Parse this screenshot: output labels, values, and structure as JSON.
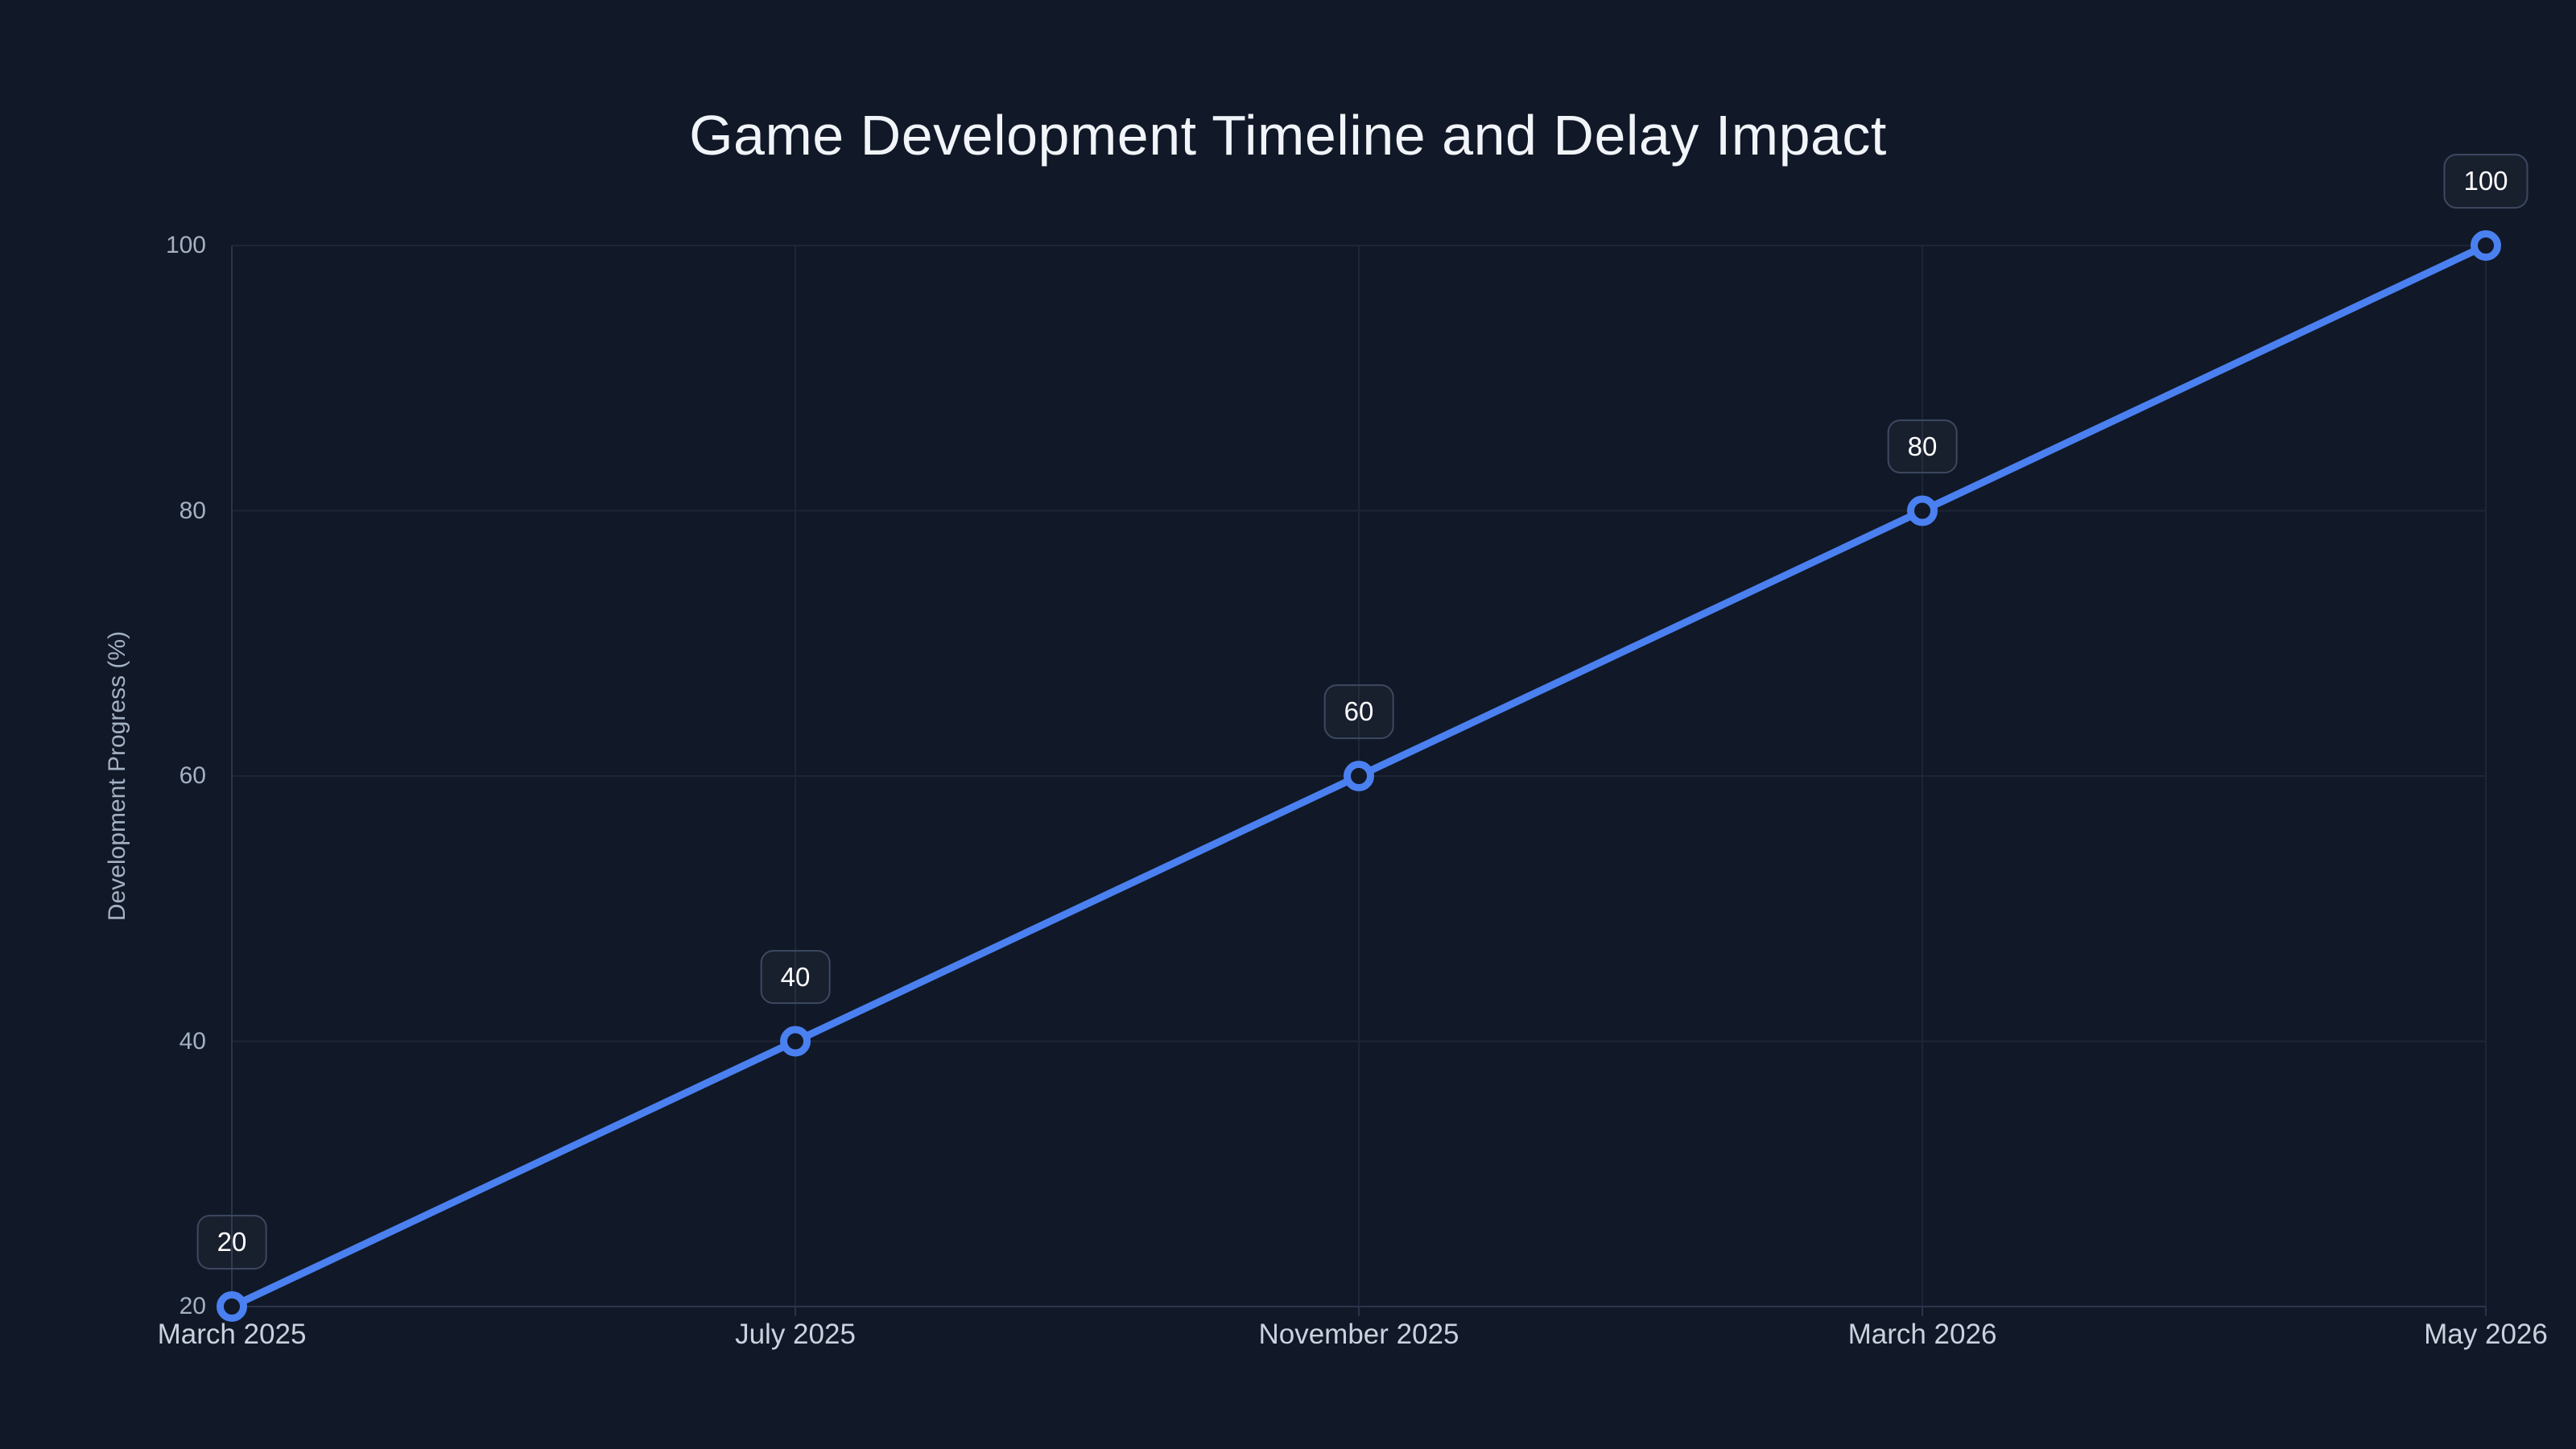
{
  "page": {
    "background_color": "#111827"
  },
  "chart_data": {
    "type": "line",
    "title": "Game Development Timeline and Delay Impact",
    "xlabel": "",
    "ylabel": "Development Progress (%)",
    "categories": [
      "March 2025",
      "July 2025",
      "November 2025",
      "March 2026",
      "May 2026"
    ],
    "series": [
      {
        "name": "Development Progress",
        "values": [
          20,
          40,
          60,
          80,
          100
        ],
        "point_labels": [
          "20",
          "40",
          "60",
          "80",
          "100"
        ]
      }
    ],
    "yticks": [
      20,
      40,
      60,
      80,
      100
    ],
    "ytick_labels": [
      "20",
      "40",
      "60",
      "80",
      "100"
    ],
    "ylim": [
      20,
      100
    ],
    "grid": true,
    "legend": "none",
    "colors": {
      "background": "#111827",
      "line": "#4a80f0",
      "marker_stroke": "#4a80f0",
      "marker_fill": "#111827",
      "grid": "#1d2637",
      "axis": "#2a344d",
      "title_text": "#f1f4f9",
      "y_tick_text": "#a4b1c3",
      "x_tick_text": "#c9d2de",
      "point_label_text": "#ffffff",
      "point_label_border": "#3d4961"
    }
  }
}
